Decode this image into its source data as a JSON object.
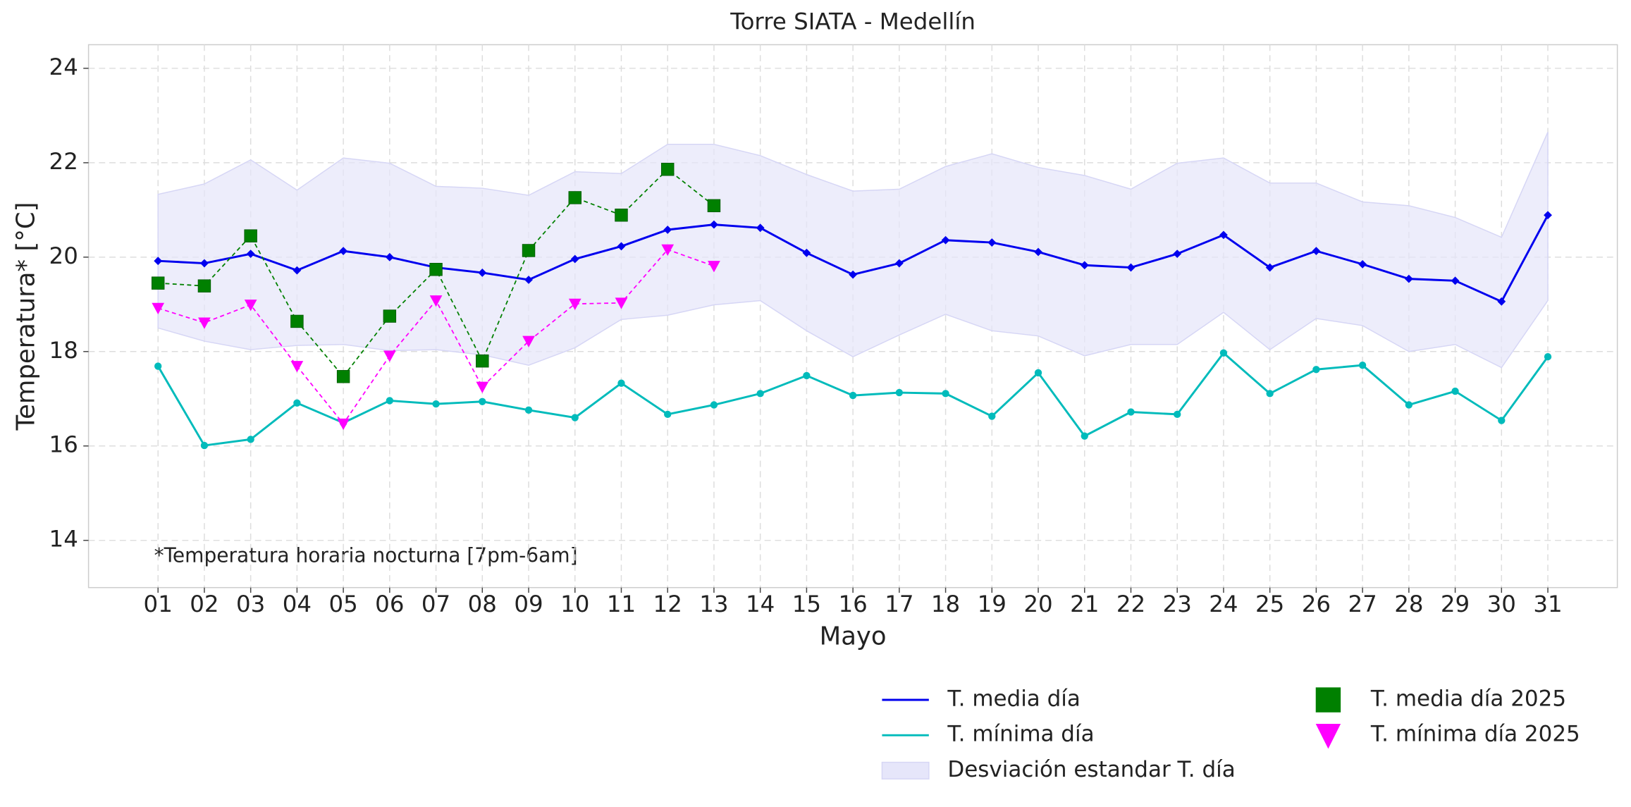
{
  "chart_data": {
    "type": "line",
    "title": "Torre SIATA - Medellín",
    "xlabel": "Mayo",
    "ylabel": "Temperatura* [°C]",
    "annotation": "*Temperatura horaria nocturna [7pm-6am]",
    "categories": [
      "01",
      "02",
      "03",
      "04",
      "05",
      "06",
      "07",
      "08",
      "09",
      "10",
      "11",
      "12",
      "13",
      "14",
      "15",
      "16",
      "17",
      "18",
      "19",
      "20",
      "21",
      "22",
      "23",
      "24",
      "25",
      "26",
      "27",
      "28",
      "29",
      "30",
      "31"
    ],
    "ylim": [
      13,
      24.5
    ],
    "yticks": [
      14,
      16,
      18,
      20,
      22,
      24
    ],
    "grid": true,
    "band": {
      "name": "Desviación estandar T. día",
      "color": "#e6e6fa",
      "upper": [
        21.33,
        21.55,
        22.06,
        21.42,
        22.1,
        21.99,
        21.5,
        21.46,
        21.31,
        21.81,
        21.77,
        22.39,
        22.39,
        22.15,
        21.75,
        21.4,
        21.44,
        21.92,
        22.19,
        21.9,
        21.73,
        21.44,
        21.99,
        22.1,
        21.57,
        21.57,
        21.17,
        21.09,
        20.84,
        20.42,
        22.65
      ],
      "lower": [
        18.5,
        18.22,
        18.04,
        18.13,
        18.15,
        18.02,
        18.04,
        17.93,
        17.71,
        18.08,
        18.68,
        18.77,
        18.99,
        19.08,
        18.44,
        17.89,
        18.35,
        18.79,
        18.44,
        18.33,
        17.91,
        18.15,
        18.15,
        18.83,
        18.04,
        18.7,
        18.55,
        18.0,
        18.15,
        17.66,
        19.08
      ]
    },
    "series": [
      {
        "name": "T. media día",
        "color": "#0000ee",
        "marker": "diamond",
        "style": "solid",
        "values": [
          19.92,
          19.87,
          20.07,
          19.72,
          20.13,
          20.0,
          19.78,
          19.67,
          19.52,
          19.96,
          20.23,
          20.58,
          20.69,
          20.62,
          20.09,
          19.63,
          19.87,
          20.36,
          20.31,
          20.11,
          19.83,
          19.78,
          20.07,
          20.47,
          19.78,
          20.13,
          19.85,
          19.54,
          19.5,
          19.06,
          20.89
        ]
      },
      {
        "name": "T. mínima día",
        "color": "#00bbbb",
        "marker": "circle",
        "style": "solid",
        "values": [
          17.69,
          16.01,
          16.14,
          16.91,
          16.49,
          16.96,
          16.89,
          16.94,
          16.76,
          16.6,
          17.33,
          16.67,
          16.87,
          17.11,
          17.49,
          17.07,
          17.13,
          17.11,
          16.63,
          17.55,
          16.21,
          16.72,
          16.67,
          17.97,
          17.11,
          17.62,
          17.71,
          16.87,
          17.16,
          16.54,
          17.89
        ]
      },
      {
        "name": "T. media día 2025",
        "color": "#008000",
        "marker": "square",
        "style": "dashed",
        "values": [
          19.45,
          19.39,
          20.45,
          18.64,
          17.47,
          18.75,
          19.74,
          17.8,
          20.14,
          21.26,
          20.89,
          21.86,
          21.09,
          null,
          null,
          null,
          null,
          null,
          null,
          null,
          null,
          null,
          null,
          null,
          null,
          null,
          null,
          null,
          null,
          null,
          null
        ]
      },
      {
        "name": "T. mínima día 2025",
        "color": "#ff00ff",
        "marker": "triangle-down",
        "style": "dashed",
        "values": [
          18.92,
          18.61,
          18.99,
          17.69,
          16.47,
          17.91,
          19.08,
          17.25,
          18.22,
          19.01,
          19.03,
          20.16,
          19.81,
          null,
          null,
          null,
          null,
          null,
          null,
          null,
          null,
          null,
          null,
          null,
          null,
          null,
          null,
          null,
          null,
          null,
          null
        ]
      }
    ]
  }
}
